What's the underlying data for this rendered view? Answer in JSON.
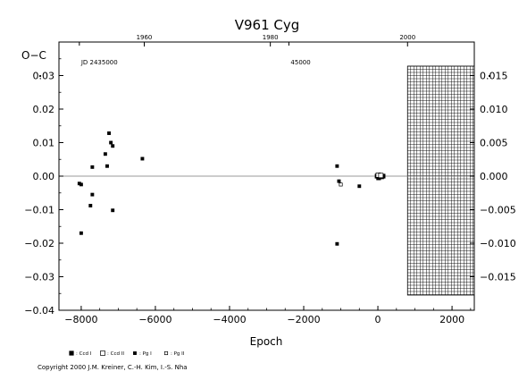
{
  "chart_data": {
    "type": "scatter",
    "title": "V961 Cyg",
    "ylabel": "O−C",
    "xlabel": "Epoch",
    "xlim": [
      -8600,
      2600
    ],
    "ylim": [
      -0.04,
      0.04
    ],
    "x_ticks": [
      -8000,
      -6000,
      -4000,
      -2000,
      0,
      2000
    ],
    "x_tick_labels": [
      "−8000",
      "−6000",
      "−4000",
      "−2000",
      "0",
      "2000"
    ],
    "y_ticks": [
      -0.04,
      -0.03,
      -0.02,
      -0.01,
      0.0,
      0.01,
      0.02,
      0.03
    ],
    "y_tick_labels": [
      "−0.04",
      "−0.03",
      "−0.02",
      "−0.01",
      "0.00",
      "0.01",
      "0.02",
      "0.03"
    ],
    "right_ticks": [
      -0.015,
      -0.01,
      -0.005,
      0.0,
      0.005,
      0.01,
      0.015
    ],
    "right_tick_labels": [
      "−0.015",
      "−0.010",
      "−0.005",
      "0.000",
      "0.005",
      "0.010",
      "0.015"
    ],
    "top_year_ticks": [
      {
        "year": "1960",
        "epoch": -6300
      },
      {
        "year": "1980",
        "epoch": -2900
      },
      {
        "year": "2000",
        "epoch": 800
      }
    ],
    "top_jd_ticks": [
      {
        "label": "JD 2435000",
        "epoch": -8050
      },
      {
        "label": "45000",
        "epoch": -2400
      }
    ],
    "grid_region_epoch": [
      800,
      2600
    ],
    "series": [
      {
        "name": ": Ccd I",
        "marker": "filled-square-large",
        "points": [
          [
            -20,
            0.0
          ],
          [
            20,
            -0.0005
          ],
          [
            60,
            0.0
          ],
          [
            100,
            -0.0002
          ],
          [
            140,
            0.0
          ]
        ]
      },
      {
        "name": ": Ccd II",
        "marker": "open-square-large",
        "points": [
          [
            10,
            0.0003
          ],
          [
            80,
            0.0002
          ]
        ]
      },
      {
        "name": ": Pg I",
        "marker": "filled-square-small",
        "points": [
          [
            -8050,
            -0.0022
          ],
          [
            -8000,
            -0.0025
          ],
          [
            -8000,
            -0.017
          ],
          [
            -7750,
            -0.0088
          ],
          [
            -7700,
            -0.0055
          ],
          [
            -7700,
            0.0027
          ],
          [
            -7350,
            0.0066
          ],
          [
            -7300,
            0.003
          ],
          [
            -7250,
            0.0128
          ],
          [
            -7200,
            0.01
          ],
          [
            -7150,
            0.009
          ],
          [
            -7150,
            -0.0102
          ],
          [
            -6350,
            0.0052
          ],
          [
            -1100,
            0.003
          ],
          [
            -1100,
            -0.0202
          ],
          [
            -1050,
            -0.0015
          ],
          [
            -500,
            -0.003
          ]
        ]
      },
      {
        "name": ": Pg II",
        "marker": "open-square-small",
        "points": [
          [
            -1000,
            -0.0025
          ]
        ]
      }
    ],
    "legend_placement": "bottom-left"
  },
  "copyright": "Copyright 2000 J.M. Kreiner, C.-H. Kim, I.-S. Nha"
}
